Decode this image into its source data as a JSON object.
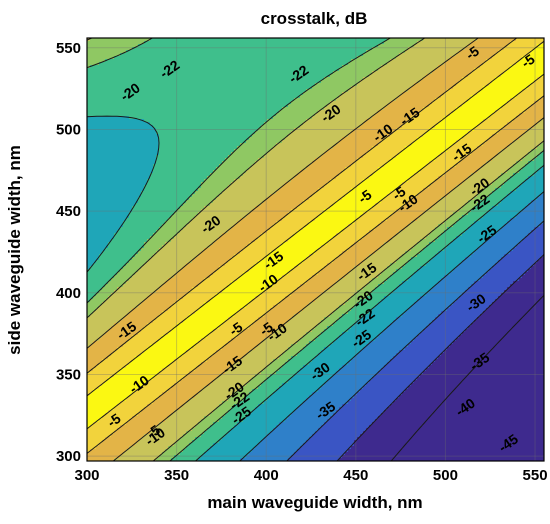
{
  "chart_data": {
    "type": "heatmap",
    "title": "crosstalk, dB",
    "xlabel": "main waveguide width, nm",
    "ylabel": "side waveguide width, nm",
    "xlim": [
      300,
      555
    ],
    "ylim": [
      297,
      556
    ],
    "xticks": [
      300,
      350,
      400,
      450,
      500,
      550
    ],
    "yticks": [
      300,
      350,
      400,
      450,
      500,
      550
    ],
    "grid": true,
    "colormap": [
      "#3e2a8e",
      "#3a55c4",
      "#2f80c9",
      "#1fa6b8",
      "#3fbf8c",
      "#8fc863",
      "#c8c45a",
      "#e3b447",
      "#f2d33c",
      "#fbf812"
    ],
    "levels": [
      -45,
      -40,
      -35,
      -30,
      -25,
      -22,
      -20,
      -15,
      -10,
      -5
    ],
    "contour_labels": [
      {
        "text": "-5",
        "x": 515,
        "y": 547
      },
      {
        "text": "-5",
        "x": 546,
        "y": 542
      },
      {
        "text": "-10",
        "x": 465,
        "y": 498
      },
      {
        "text": "-15",
        "x": 509,
        "y": 486
      },
      {
        "text": "-20",
        "x": 324,
        "y": 523
      },
      {
        "text": "-22",
        "x": 346,
        "y": 537
      },
      {
        "text": "-22",
        "x": 418,
        "y": 534
      },
      {
        "text": "-20",
        "x": 436,
        "y": 510
      },
      {
        "text": "-15",
        "x": 480,
        "y": 508
      },
      {
        "text": "-5",
        "x": 455,
        "y": 459
      },
      {
        "text": "-5",
        "x": 474,
        "y": 461
      },
      {
        "text": "-10",
        "x": 479,
        "y": 455
      },
      {
        "text": "-20",
        "x": 369,
        "y": 442
      },
      {
        "text": "-15",
        "x": 404,
        "y": 420
      },
      {
        "text": "-10",
        "x": 401,
        "y": 406
      },
      {
        "text": "-15",
        "x": 456,
        "y": 413
      },
      {
        "text": "-20",
        "x": 454,
        "y": 396
      },
      {
        "text": "-22",
        "x": 455,
        "y": 385
      },
      {
        "text": "-25",
        "x": 453,
        "y": 372
      },
      {
        "text": "-20",
        "x": 519,
        "y": 465
      },
      {
        "text": "-22",
        "x": 519,
        "y": 455
      },
      {
        "text": "-25",
        "x": 523,
        "y": 436
      },
      {
        "text": "-30",
        "x": 517,
        "y": 394
      },
      {
        "text": "-35",
        "x": 519,
        "y": 358
      },
      {
        "text": "-40",
        "x": 511,
        "y": 330
      },
      {
        "text": "-45",
        "x": 535,
        "y": 308
      },
      {
        "text": "-5",
        "x": 383,
        "y": 378
      },
      {
        "text": "-5",
        "x": 400,
        "y": 378
      },
      {
        "text": "-10",
        "x": 406,
        "y": 376
      },
      {
        "text": "-15",
        "x": 381,
        "y": 356
      },
      {
        "text": "-20",
        "x": 382,
        "y": 340
      },
      {
        "text": "-22",
        "x": 385,
        "y": 334
      },
      {
        "text": "-25",
        "x": 386,
        "y": 325
      },
      {
        "text": "-30",
        "x": 430,
        "y": 352
      },
      {
        "text": "-35",
        "x": 433,
        "y": 328
      },
      {
        "text": "-15",
        "x": 322,
        "y": 377
      },
      {
        "text": "-10",
        "x": 329,
        "y": 344
      },
      {
        "text": "-5",
        "x": 315,
        "y": 322
      },
      {
        "text": "-5",
        "x": 337,
        "y": 315
      },
      {
        "text": "-10",
        "x": 338,
        "y": 312
      }
    ]
  }
}
